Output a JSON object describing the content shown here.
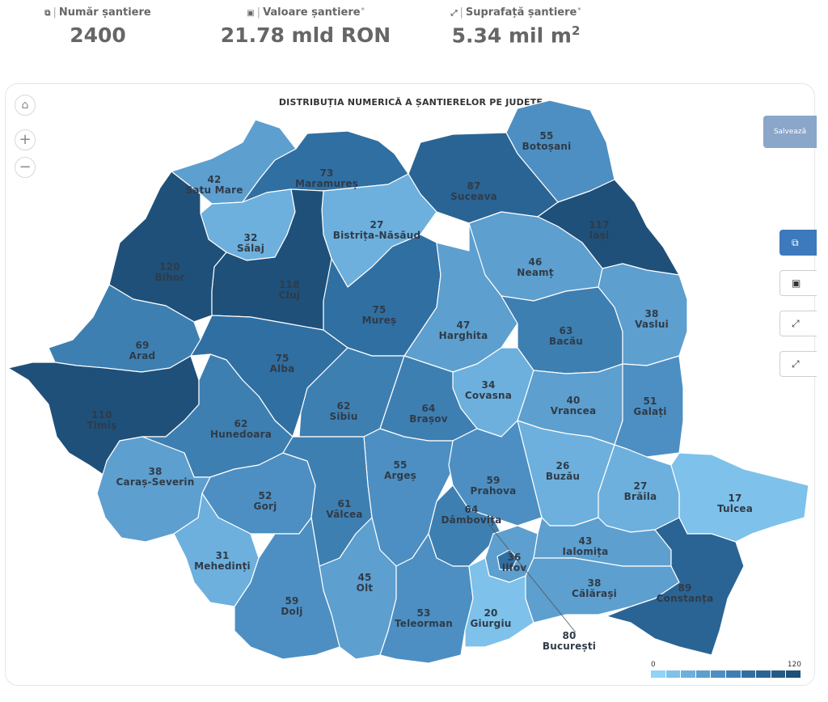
{
  "kpis": [
    {
      "icon": "sites-icon",
      "glyph": "⧉",
      "label": "Număr șantiere",
      "value": "2400",
      "star": false
    },
    {
      "icon": "money-icon",
      "glyph": "▣",
      "label": "Valoare șantiere",
      "value": "21.78 mld RON",
      "star": true
    },
    {
      "icon": "area-icon",
      "glyph": "⤢",
      "label": "Suprafață șantiere",
      "value": "5.34 mil m",
      "sup": "2",
      "star": true
    }
  ],
  "map": {
    "title": "DISTRIBUȚIA NUMERICĂ A ȘANTIERELOR PE JUDEȚE",
    "save_label": "Salvează",
    "color_scale": {
      "min": 0,
      "max": 120,
      "min_label": "0",
      "max_label": "120",
      "colors": [
        "#8fd3f7",
        "#7ec1ea",
        "#6db0dd",
        "#5d9fcf",
        "#4d8fc2",
        "#3e7fb2",
        "#306fa2",
        "#2a6494",
        "#245a86",
        "#1f5079"
      ]
    },
    "counties": [
      {
        "name": "Satu Mare",
        "value": 42
      },
      {
        "name": "Maramureș",
        "value": 73
      },
      {
        "name": "Botoșani",
        "value": 55
      },
      {
        "name": "Suceava",
        "value": 87
      },
      {
        "name": "Bistrița-Năsăud",
        "value": 27
      },
      {
        "name": "Sălaj",
        "value": 32
      },
      {
        "name": "Bihor",
        "value": 120
      },
      {
        "name": "Cluj",
        "value": 118
      },
      {
        "name": "Iași",
        "value": 117
      },
      {
        "name": "Neamț",
        "value": 46
      },
      {
        "name": "Mureș",
        "value": 75
      },
      {
        "name": "Harghita",
        "value": 47
      },
      {
        "name": "Bacău",
        "value": 63
      },
      {
        "name": "Vaslui",
        "value": 38
      },
      {
        "name": "Arad",
        "value": 69
      },
      {
        "name": "Alba",
        "value": 75
      },
      {
        "name": "Covasna",
        "value": 34
      },
      {
        "name": "Timiș",
        "value": 110
      },
      {
        "name": "Hunedoara",
        "value": 62
      },
      {
        "name": "Sibiu",
        "value": 62
      },
      {
        "name": "Brașov",
        "value": 64
      },
      {
        "name": "Vrancea",
        "value": 40
      },
      {
        "name": "Galați",
        "value": 51
      },
      {
        "name": "Caraș-Severin",
        "value": 38
      },
      {
        "name": "Argeș",
        "value": 55
      },
      {
        "name": "Prahova",
        "value": 59
      },
      {
        "name": "Buzău",
        "value": 26
      },
      {
        "name": "Gorj",
        "value": 52
      },
      {
        "name": "Vâlcea",
        "value": 61
      },
      {
        "name": "Dâmbovița",
        "value": 64
      },
      {
        "name": "Brăila",
        "value": 27
      },
      {
        "name": "Tulcea",
        "value": 17
      },
      {
        "name": "Mehedinți",
        "value": 31
      },
      {
        "name": "Ilfov",
        "value": 36
      },
      {
        "name": "Ialomița",
        "value": 43
      },
      {
        "name": "Olt",
        "value": 45
      },
      {
        "name": "Dolj",
        "value": 59
      },
      {
        "name": "Teleorman",
        "value": 53
      },
      {
        "name": "Giurgiu",
        "value": 20
      },
      {
        "name": "Călărași",
        "value": 38
      },
      {
        "name": "Constanța",
        "value": 89
      },
      {
        "name": "București",
        "value": 80
      }
    ]
  }
}
